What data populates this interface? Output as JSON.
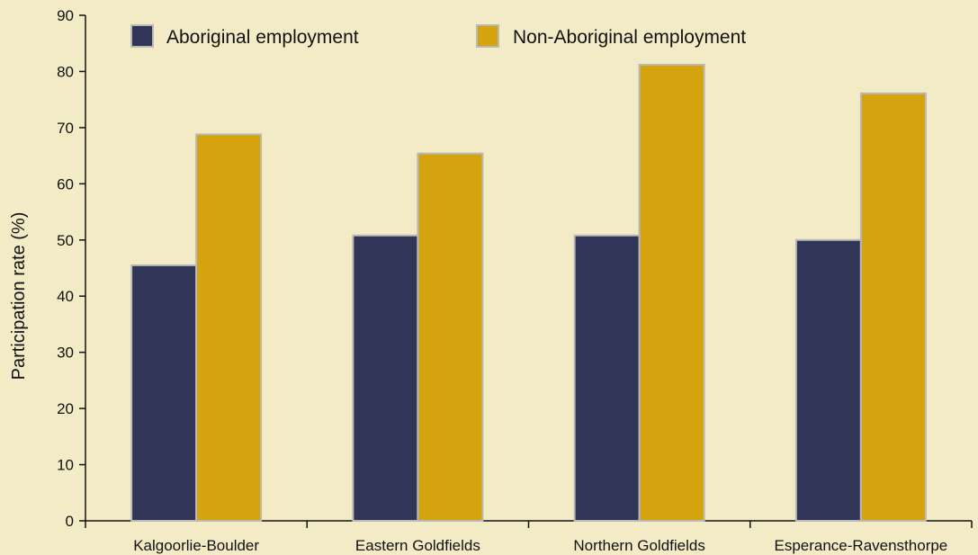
{
  "colors": {
    "background": "#f3ebc6",
    "aboriginal": "#313557",
    "non_aboriginal": "#d4a30e",
    "bar_outline": "#b9b9b9",
    "axis": "#111111"
  },
  "chart_data": {
    "type": "bar",
    "ylabel": "Participation rate (%)",
    "xlabel": "",
    "ylim": [
      0,
      90
    ],
    "yticks": [
      0,
      10,
      20,
      30,
      40,
      50,
      60,
      70,
      80,
      90
    ],
    "grid": false,
    "legend_position": "top",
    "categories": [
      "Kalgoorlie-Boulder",
      "Eastern Goldfields",
      "Northern Goldfields",
      "Esperance-Ravensthorpe"
    ],
    "series": [
      {
        "name": "Aboriginal employment",
        "color": "#313557",
        "values": [
          45.5,
          50.8,
          50.8,
          50.0
        ]
      },
      {
        "name": "Non-Aboriginal employment",
        "color": "#d4a30e",
        "values": [
          68.8,
          65.4,
          81.2,
          76.1
        ]
      }
    ]
  }
}
